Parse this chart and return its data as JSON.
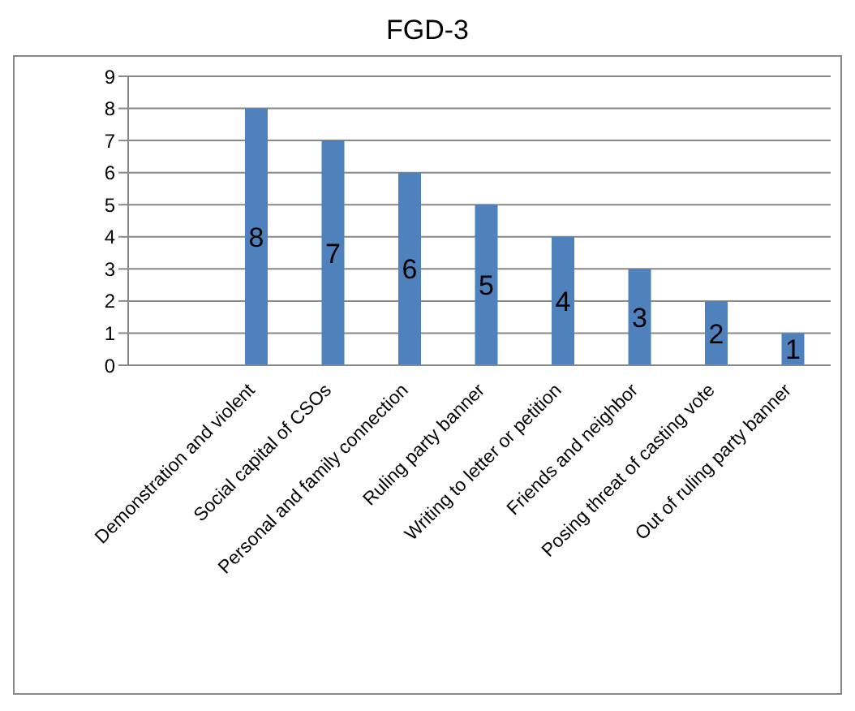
{
  "chart_data": {
    "type": "bar",
    "title": "FGD-3",
    "categories": [
      "Demonstration and violent",
      "Social capital of CSOs",
      "Personal and family connection",
      "Ruling party banner",
      "Writing to letter or petition",
      "Friends and neighbor",
      "Posing threat of casting vote",
      "Out of ruling party banner"
    ],
    "values": [
      8,
      7,
      6,
      5,
      4,
      3,
      2,
      1
    ],
    "color": "#4f81bd",
    "ylim": [
      0,
      9
    ],
    "yticks": [
      0,
      1,
      2,
      3,
      4,
      5,
      6,
      7,
      8,
      9
    ],
    "grid": "y",
    "data_labels": true
  }
}
